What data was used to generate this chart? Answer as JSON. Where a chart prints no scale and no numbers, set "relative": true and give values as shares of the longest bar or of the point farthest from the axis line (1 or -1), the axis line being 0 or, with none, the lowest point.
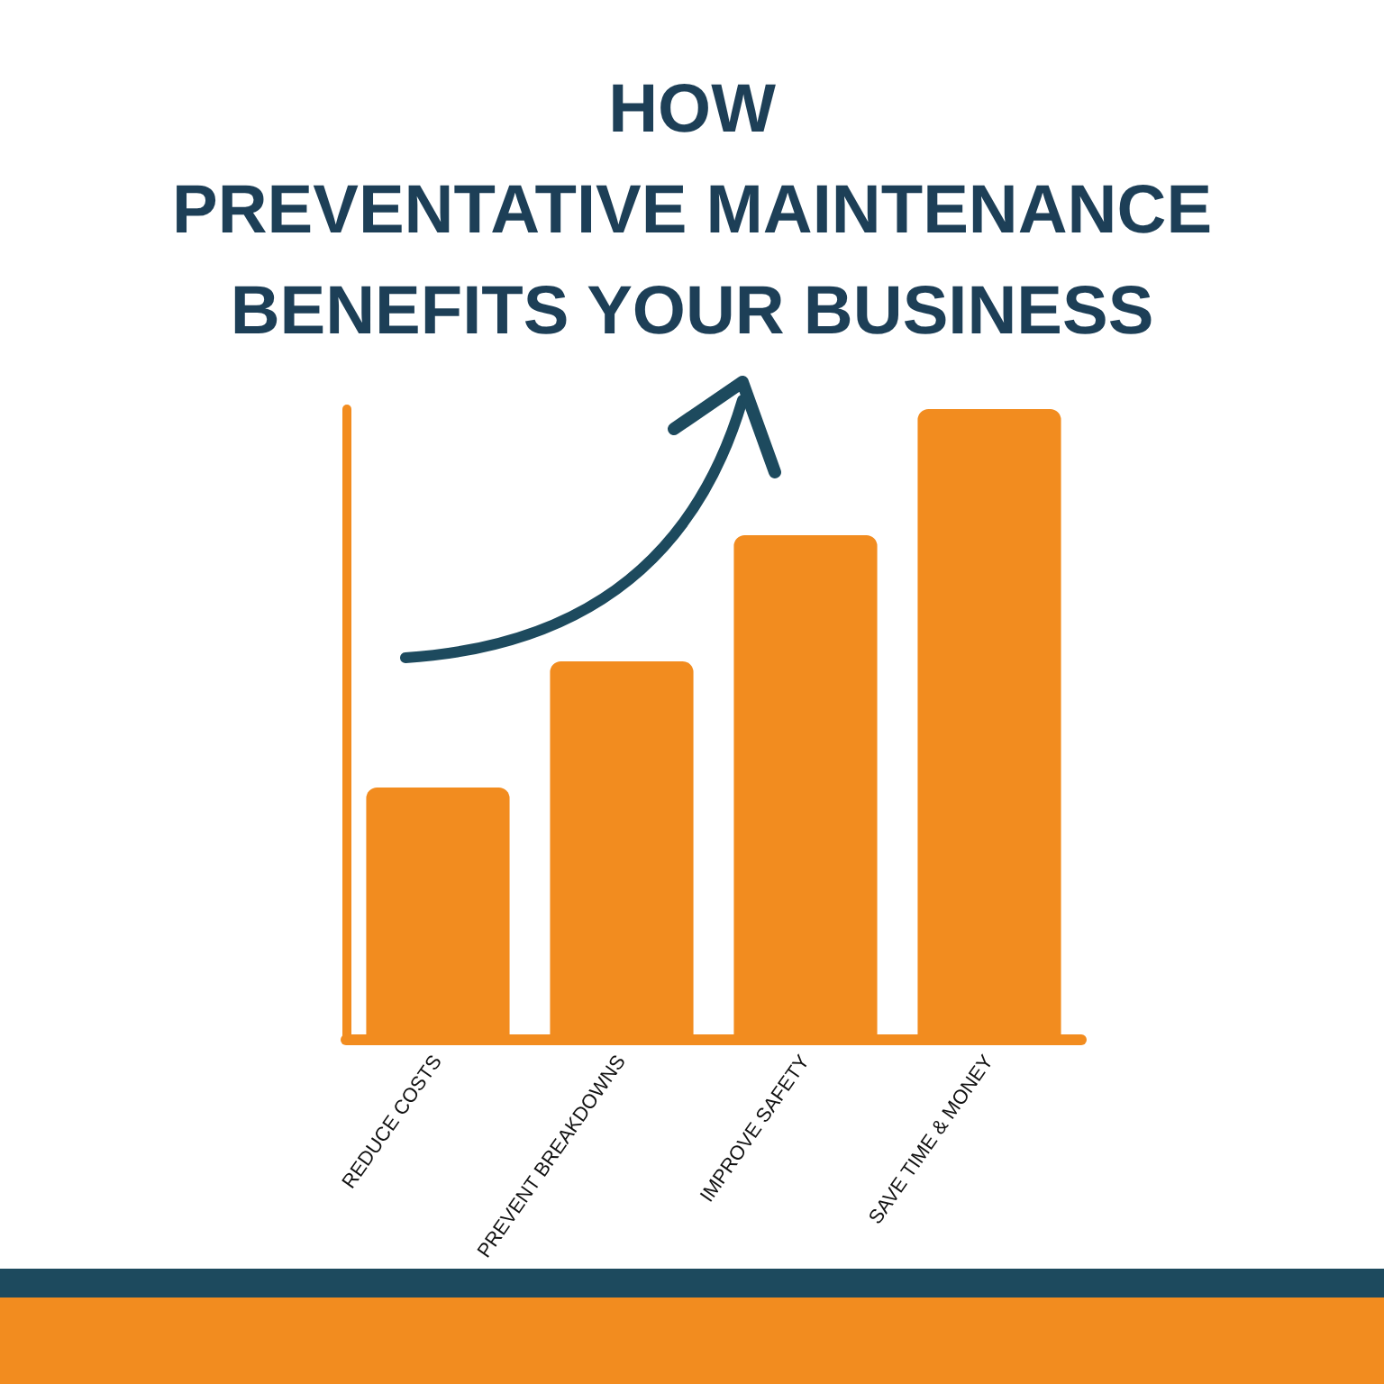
{
  "chart_data": {
    "type": "bar",
    "title": "HOW\nPREVENTATIVE MAINTENANCE\nBENEFITS YOUR BUSINESS",
    "categories": [
      "REDUCE COSTS",
      "PREVENT BREAKDOWNS",
      "IMPROVE SAFETY",
      "SAVE TIME & MONEY"
    ],
    "values": [
      0.4,
      0.6,
      0.8,
      1.0
    ],
    "color": "#f28c1f",
    "relative": true,
    "grid": false
  }
}
